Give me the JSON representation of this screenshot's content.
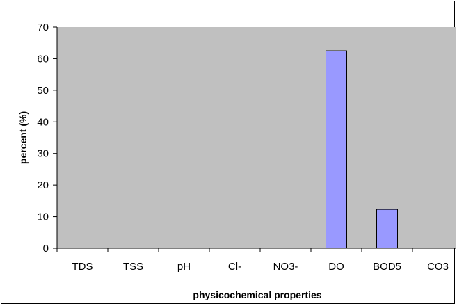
{
  "chart_data": {
    "type": "bar",
    "title": "",
    "xlabel": "physicochemical properties",
    "ylabel": "percent (%)",
    "categories": [
      "TDS",
      "TSS",
      "pH",
      "Cl-",
      "NO3-",
      "DO",
      "BOD5",
      "CO3"
    ],
    "values": [
      0,
      0,
      0,
      0,
      0,
      62.5,
      12.3,
      0
    ],
    "ylim": [
      0,
      70
    ],
    "yticks": [
      0,
      10,
      20,
      30,
      40,
      50,
      60,
      70
    ],
    "grid": false,
    "legend": "none",
    "colors": {
      "plot_background": "#c0c0c0",
      "bar_fill": "#9999ff",
      "bar_stroke": "#000000",
      "axis": "#000000"
    }
  }
}
